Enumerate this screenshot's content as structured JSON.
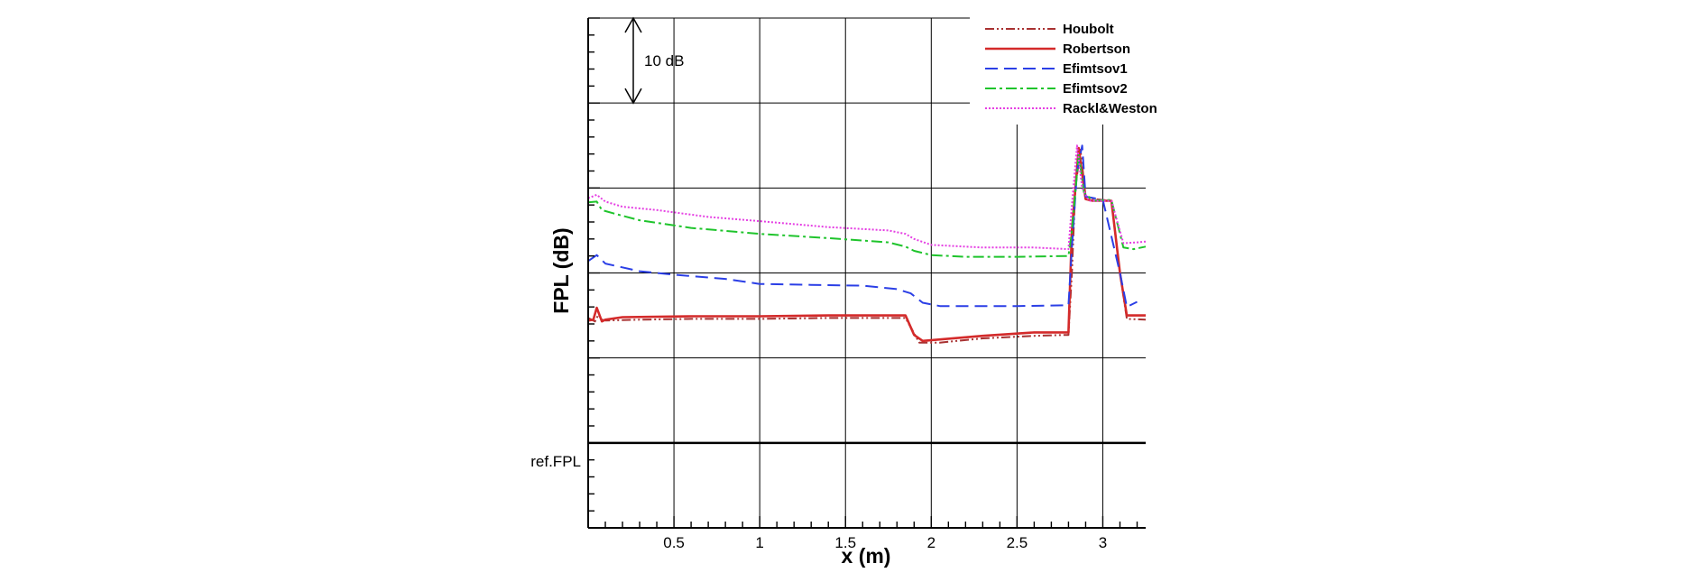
{
  "chart_data": {
    "type": "line",
    "title": "",
    "xlabel": "x (m)",
    "ylabel": "FPL (dB)",
    "xlim": [
      0,
      3.25
    ],
    "ylim": [
      0,
      60
    ],
    "x_ticks": [
      {
        "value": 0.5,
        "label": "0.5"
      },
      {
        "value": 1,
        "label": "1"
      },
      {
        "value": 1.5,
        "label": "1.5"
      },
      {
        "value": 2,
        "label": "2"
      },
      {
        "value": 2.5,
        "label": "2.5"
      },
      {
        "value": 3,
        "label": "3"
      }
    ],
    "y_reference": {
      "value": 10,
      "label": "ref.FPL"
    },
    "grid": true,
    "legend_position": "top-right",
    "scale_annotation": {
      "label": "10 dB",
      "from": 50,
      "to": 60
    },
    "series": [
      {
        "name": "Houbolt",
        "color": "#a83232",
        "dash": "10 3 2 3 2 3",
        "points": [
          [
            0,
            24.7
          ],
          [
            0.04,
            24.3
          ],
          [
            0.06,
            25.1
          ],
          [
            0.08,
            24.5
          ],
          [
            0.1,
            24.4
          ],
          [
            0.3,
            24.5
          ],
          [
            0.6,
            24.6
          ],
          [
            1,
            24.6
          ],
          [
            1.4,
            24.7
          ],
          [
            1.85,
            24.7
          ],
          [
            1.93,
            21.8
          ],
          [
            2.05,
            21.8
          ],
          [
            2.3,
            22.3
          ],
          [
            2.6,
            22.6
          ],
          [
            2.78,
            22.7
          ],
          [
            2.8,
            22.7
          ],
          [
            2.82,
            30
          ],
          [
            2.84,
            40
          ],
          [
            2.87,
            44.5
          ],
          [
            2.9,
            39
          ],
          [
            2.95,
            38.7
          ],
          [
            3.05,
            38.5
          ],
          [
            3.1,
            30
          ],
          [
            3.14,
            24.6
          ],
          [
            3.25,
            24.5
          ]
        ]
      },
      {
        "name": "Robertson",
        "color": "#d42a2a",
        "dash": "",
        "points": [
          [
            0,
            24.4
          ],
          [
            0.03,
            24.5
          ],
          [
            0.05,
            25.9
          ],
          [
            0.08,
            24.3
          ],
          [
            0.1,
            24.5
          ],
          [
            0.2,
            24.8
          ],
          [
            0.6,
            24.9
          ],
          [
            1,
            24.9
          ],
          [
            1.4,
            25
          ],
          [
            1.85,
            25
          ],
          [
            1.9,
            22.7
          ],
          [
            1.95,
            22
          ],
          [
            2.3,
            22.6
          ],
          [
            2.6,
            23
          ],
          [
            2.8,
            23
          ],
          [
            2.82,
            35
          ],
          [
            2.86,
            44.7
          ],
          [
            2.9,
            38.7
          ],
          [
            2.94,
            38.5
          ],
          [
            3.05,
            38.5
          ],
          [
            3.1,
            30
          ],
          [
            3.14,
            25
          ],
          [
            3.25,
            25
          ]
        ]
      },
      {
        "name": "Efimtsov1",
        "color": "#2b3fe6",
        "dash": "14 7",
        "points": [
          [
            0,
            31.4
          ],
          [
            0.05,
            32.1
          ],
          [
            0.1,
            31.1
          ],
          [
            0.3,
            30.2
          ],
          [
            0.5,
            29.8
          ],
          [
            0.8,
            29.3
          ],
          [
            1,
            28.7
          ],
          [
            1.3,
            28.6
          ],
          [
            1.6,
            28.5
          ],
          [
            1.8,
            28.1
          ],
          [
            1.88,
            27.6
          ],
          [
            1.95,
            26.5
          ],
          [
            2.05,
            26.1
          ],
          [
            2.5,
            26.1
          ],
          [
            2.8,
            26.2
          ],
          [
            2.82,
            33
          ],
          [
            2.85,
            42
          ],
          [
            2.88,
            45
          ],
          [
            2.9,
            39
          ],
          [
            3,
            38.6
          ],
          [
            3.1,
            30
          ],
          [
            3.14,
            26
          ],
          [
            3.2,
            26.6
          ]
        ]
      },
      {
        "name": "Efimtsov2",
        "color": "#1fc42c",
        "dash": "12 4 3 4",
        "points": [
          [
            0,
            38.3
          ],
          [
            0.05,
            38.4
          ],
          [
            0.08,
            37.4
          ],
          [
            0.15,
            37
          ],
          [
            0.3,
            36.2
          ],
          [
            0.6,
            35.3
          ],
          [
            1,
            34.6
          ],
          [
            1.4,
            34.1
          ],
          [
            1.75,
            33.6
          ],
          [
            1.85,
            33.1
          ],
          [
            1.9,
            32.6
          ],
          [
            2,
            32.1
          ],
          [
            2.2,
            31.9
          ],
          [
            2.5,
            31.9
          ],
          [
            2.8,
            32
          ],
          [
            2.82,
            35
          ],
          [
            2.86,
            44
          ],
          [
            2.89,
            39.5
          ],
          [
            2.94,
            38.5
          ],
          [
            3.05,
            38.6
          ],
          [
            3.12,
            33
          ],
          [
            3.18,
            32.8
          ],
          [
            3.25,
            33.1
          ]
        ]
      },
      {
        "name": "Rackl&Weston",
        "color": "#e53fe3",
        "dash": "2 2",
        "points": [
          [
            0,
            38.8
          ],
          [
            0.05,
            39.2
          ],
          [
            0.1,
            38.4
          ],
          [
            0.2,
            37.8
          ],
          [
            0.4,
            37.4
          ],
          [
            0.7,
            36.6
          ],
          [
            1,
            36.1
          ],
          [
            1.4,
            35.4
          ],
          [
            1.75,
            35
          ],
          [
            1.85,
            34.6
          ],
          [
            1.9,
            34
          ],
          [
            2,
            33.3
          ],
          [
            2.3,
            33
          ],
          [
            2.6,
            33
          ],
          [
            2.8,
            32.8
          ],
          [
            2.82,
            38
          ],
          [
            2.85,
            45
          ],
          [
            2.88,
            40
          ],
          [
            2.92,
            38.5
          ],
          [
            3.05,
            38.5
          ],
          [
            3.12,
            33.5
          ],
          [
            3.2,
            33.6
          ],
          [
            3.25,
            33.7
          ]
        ]
      }
    ]
  }
}
